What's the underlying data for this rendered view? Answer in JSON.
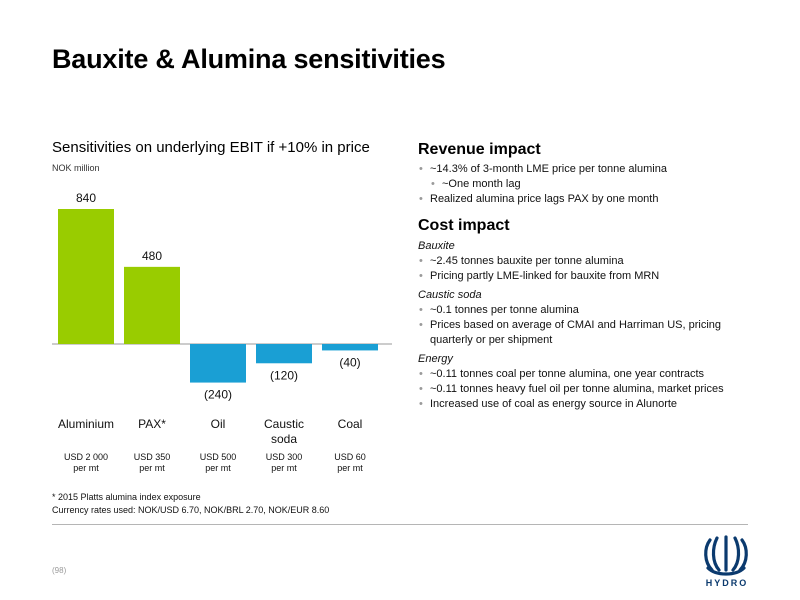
{
  "title": "Bauxite & Alumina sensitivities",
  "chart_data": {
    "type": "bar",
    "title": "Sensitivities on underlying EBIT if +10% in price",
    "unit": "NOK million",
    "categories": [
      "Aluminium",
      "PAX*",
      "Oil",
      "Caustic\nsoda",
      "Coal"
    ],
    "values": [
      840,
      480,
      -240,
      -120,
      -40
    ],
    "value_labels": [
      "840",
      "480",
      "(240)",
      "(120)",
      "(40)"
    ],
    "sub_labels": [
      "USD 2 000\nper mt",
      "USD 350\nper mt",
      "USD 500\nper mt",
      "USD 300\nper mt",
      "USD 60\nper mt"
    ],
    "colors": [
      "#99cc00",
      "#99cc00",
      "#1a9fd4",
      "#1a9fd4",
      "#1a9fd4"
    ],
    "ylim": [
      -240,
      840
    ],
    "grid": false,
    "legend": "none"
  },
  "footnotes": {
    "pax": "* 2015 Platts alumina index exposure",
    "currency": "Currency rates used: NOK/USD 6.70, NOK/BRL 2.70, NOK/EUR 8.60"
  },
  "revenue": {
    "title": "Revenue impact",
    "items": [
      {
        "text": "~14.3% of 3-month LME price per tonne alumina",
        "level": 1
      },
      {
        "text": "~One month lag",
        "level": 2
      },
      {
        "text": "Realized alumina price lags PAX by one month",
        "level": 1
      }
    ]
  },
  "cost": {
    "title": "Cost impact",
    "groups": [
      {
        "name": "Bauxite",
        "items": [
          "~2.45 tonnes bauxite per tonne alumina",
          "Pricing partly LME-linked for bauxite from MRN"
        ]
      },
      {
        "name": "Caustic soda",
        "items": [
          "~0.1 tonnes per tonne alumina",
          "Prices based on average of CMAI and Harriman US, pricing quarterly or per shipment"
        ]
      },
      {
        "name": "Energy",
        "items": [
          "~0.11 tonnes coal per tonne alumina, one year contracts",
          "~0.11 tonnes heavy fuel oil per tonne alumina, market prices",
          "Increased use of coal as energy source in Alunorte"
        ]
      }
    ]
  },
  "page_number": "(98)",
  "brand": {
    "name": "HYDRO",
    "logo_icon": "hydro-logo-icon",
    "color": "#0b3a6e"
  }
}
